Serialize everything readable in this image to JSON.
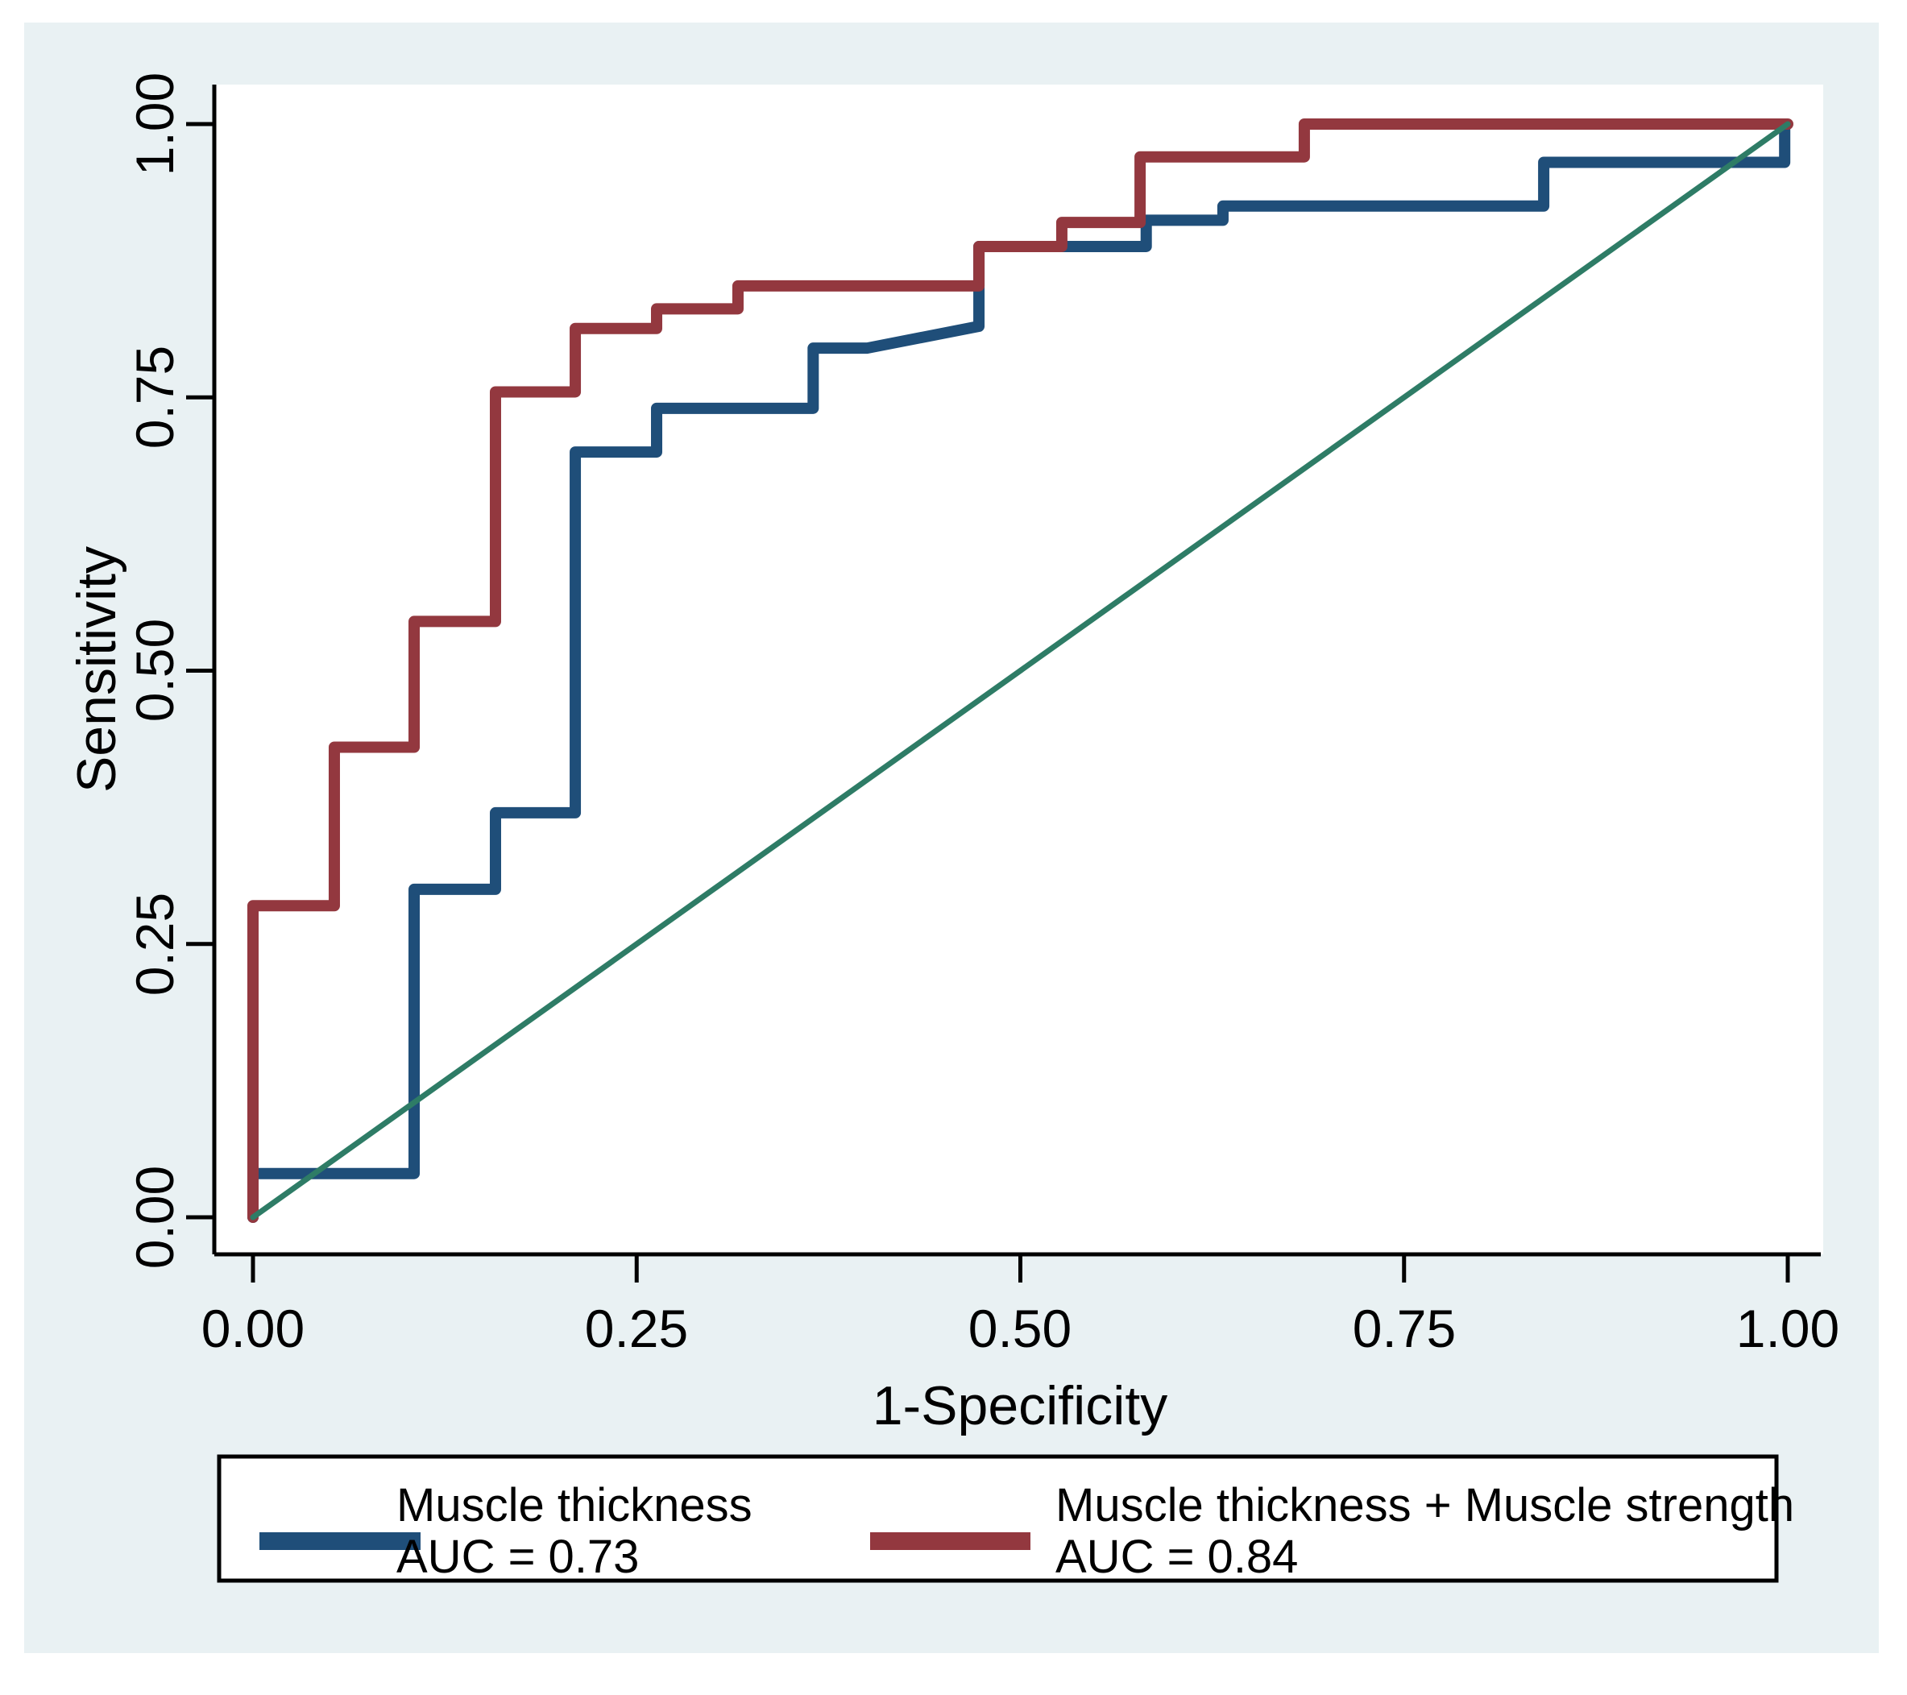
{
  "figure": {
    "background_color": "#ffffff",
    "panel_color": "#e9f1f3",
    "plot_background": "#ffffff",
    "axis_color": "#000000"
  },
  "axes": {
    "x_title": "1-Specificity",
    "y_title": "Sensitivity",
    "x_tick_labels": [
      "0.00",
      "0.25",
      "0.50",
      "0.75",
      "1.00"
    ],
    "y_tick_labels": [
      "0.00",
      "0.25",
      "0.50",
      "0.75",
      "1.00"
    ]
  },
  "legend": {
    "entries": [
      {
        "label_line1": "Muscle thickness",
        "label_line2": "AUC = 0.73",
        "color": "#1f4e79"
      },
      {
        "label_line1": "Muscle thickness + Muscle strength",
        "label_line2": "AUC = 0.84",
        "color": "#93383f"
      }
    ]
  },
  "chart_data": {
    "type": "line",
    "subtype": "roc-step-curves",
    "title": "",
    "xlabel": "1-Specificity",
    "ylabel": "Sensitivity",
    "xlim": [
      0,
      1
    ],
    "ylim": [
      0,
      1
    ],
    "x_tick_values": [
      0,
      0.25,
      0.5,
      0.75,
      1.0
    ],
    "y_tick_values": [
      0,
      0.25,
      0.5,
      0.75,
      1.0
    ],
    "grid": false,
    "legend_position": "bottom",
    "series": [
      {
        "name": "Muscle thickness",
        "auc": 0.73,
        "color": "#1f4e79",
        "stroke_width": 14,
        "points": [
          [
            0.0,
            0.0
          ],
          [
            0.0,
            0.04
          ],
          [
            0.105,
            0.04
          ],
          [
            0.105,
            0.3
          ],
          [
            0.158,
            0.3
          ],
          [
            0.158,
            0.37
          ],
          [
            0.21,
            0.37
          ],
          [
            0.21,
            0.7
          ],
          [
            0.263,
            0.7
          ],
          [
            0.263,
            0.74
          ],
          [
            0.365,
            0.74
          ],
          [
            0.365,
            0.795
          ],
          [
            0.4,
            0.795
          ],
          [
            0.473,
            0.815
          ],
          [
            0.473,
            0.888
          ],
          [
            0.582,
            0.888
          ],
          [
            0.582,
            0.912
          ],
          [
            0.632,
            0.912
          ],
          [
            0.632,
            0.925
          ],
          [
            0.841,
            0.925
          ],
          [
            0.841,
            0.965
          ],
          [
            0.998,
            0.965
          ],
          [
            0.998,
            1.0
          ]
        ]
      },
      {
        "name": "Muscle thickness + Muscle strength",
        "auc": 0.84,
        "color": "#93383f",
        "stroke_width": 14,
        "points": [
          [
            0.0,
            0.0
          ],
          [
            0.0,
            0.285
          ],
          [
            0.053,
            0.285
          ],
          [
            0.053,
            0.43
          ],
          [
            0.105,
            0.43
          ],
          [
            0.105,
            0.545
          ],
          [
            0.158,
            0.545
          ],
          [
            0.158,
            0.755
          ],
          [
            0.21,
            0.755
          ],
          [
            0.21,
            0.813
          ],
          [
            0.263,
            0.813
          ],
          [
            0.263,
            0.831
          ],
          [
            0.316,
            0.831
          ],
          [
            0.316,
            0.852
          ],
          [
            0.473,
            0.852
          ],
          [
            0.473,
            0.888
          ],
          [
            0.527,
            0.888
          ],
          [
            0.527,
            0.91
          ],
          [
            0.578,
            0.91
          ],
          [
            0.578,
            0.97
          ],
          [
            0.685,
            0.97
          ],
          [
            0.685,
            1.0
          ],
          [
            1.0,
            1.0
          ]
        ]
      },
      {
        "name": "reference-diagonal",
        "color": "#2e7c66",
        "stroke_width": 7,
        "points": [
          [
            0.0,
            0.0
          ],
          [
            1.0,
            1.0
          ]
        ]
      }
    ]
  }
}
